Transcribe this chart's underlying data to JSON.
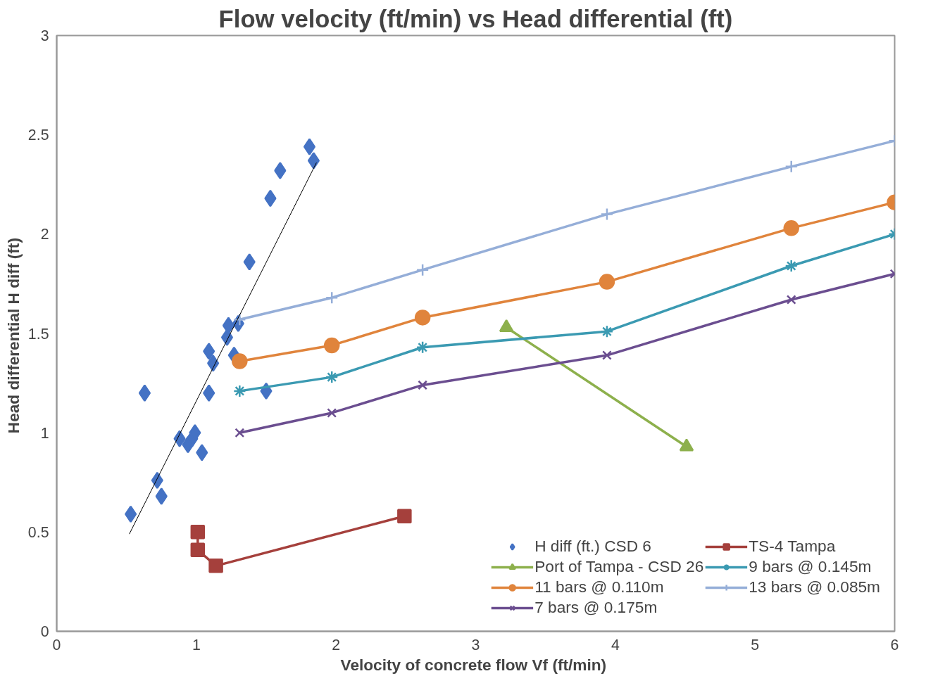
{
  "chart_data": {
    "type": "line",
    "title": "Flow velocity (ft/min) vs Head differential (ft)",
    "xlabel": "Velocity of concrete flow Vf  (ft/min)",
    "ylabel": "Head differential H diff  (ft)",
    "xlim": [
      0,
      6
    ],
    "ylim": [
      0,
      3
    ],
    "xticks": [
      0,
      1,
      2,
      3,
      4,
      5,
      6
    ],
    "yticks": [
      0,
      0.5,
      1,
      1.5,
      2,
      2.5,
      3
    ],
    "grid": false,
    "legend": "bottom right",
    "series": [
      {
        "name": "H diff (ft.) CSD 6",
        "type": "scatter",
        "marker": "diamond",
        "color": "#4472c4",
        "x": [
          0.53,
          0.63,
          0.72,
          0.75,
          0.88,
          0.94,
          0.97,
          0.99,
          1.04,
          1.09,
          1.09,
          1.12,
          1.22,
          1.23,
          1.27,
          1.3,
          1.38,
          1.5,
          1.53,
          1.6,
          1.81,
          1.84
        ],
        "values": [
          0.59,
          1.2,
          0.76,
          0.68,
          0.97,
          0.94,
          0.97,
          1.0,
          0.9,
          1.2,
          1.41,
          1.35,
          1.48,
          1.54,
          1.39,
          1.55,
          1.86,
          1.21,
          2.18,
          2.32,
          2.44,
          2.37
        ]
      },
      {
        "name": "TS-4 Tampa",
        "marker": "square",
        "color": "#a5403c",
        "x": [
          1.01,
          1.01,
          1.14,
          2.49
        ],
        "values": [
          0.5,
          0.41,
          0.33,
          0.58
        ]
      },
      {
        "name": "Port of Tampa - CSD 26",
        "marker": "triangle",
        "color": "#8db04c",
        "x": [
          3.22,
          4.51
        ],
        "values": [
          1.53,
          0.93
        ]
      },
      {
        "name": "9 bars @ 0.145m",
        "marker": "cross",
        "color": "#3b9ab2",
        "x": [
          1.31,
          1.97,
          2.62,
          3.94,
          5.26,
          6
        ],
        "values": [
          1.21,
          1.28,
          1.43,
          1.51,
          1.84,
          2.0
        ]
      },
      {
        "name": "11 bars @ 0.110m",
        "marker": "circle",
        "color": "#e0843c",
        "x": [
          1.31,
          1.97,
          2.62,
          3.94,
          5.26,
          6
        ],
        "values": [
          1.36,
          1.44,
          1.58,
          1.76,
          2.03,
          2.16
        ]
      },
      {
        "name": "13 bars @ 0.085m",
        "marker": "plus",
        "color": "#95aed8",
        "x": [
          1.31,
          1.97,
          2.62,
          3.94,
          5.26,
          6
        ],
        "values": [
          1.57,
          1.68,
          1.82,
          2.1,
          2.34,
          2.47
        ]
      },
      {
        "name": "7 bars @ 0.175m",
        "marker": "x",
        "color": "#6b4e90",
        "x": [
          1.31,
          1.97,
          2.62,
          3.94,
          5.26,
          6
        ],
        "values": [
          1.0,
          1.1,
          1.24,
          1.39,
          1.67,
          1.8
        ]
      },
      {
        "marker": "none",
        "color": "#000000",
        "x": [
          0.52,
          1.86
        ],
        "values": [
          0.49,
          2.36
        ]
      }
    ]
  }
}
